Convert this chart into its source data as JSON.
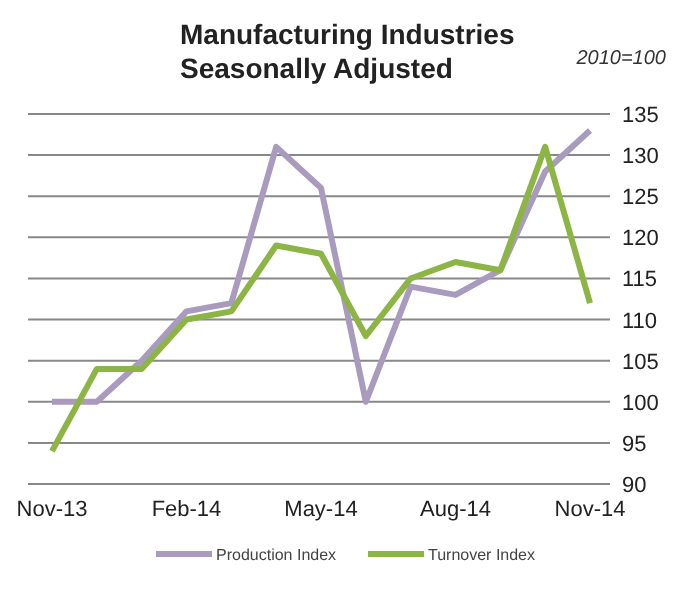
{
  "chart_data": {
    "type": "line",
    "title": "Manufacturing  Industries\nSeasonally Adjusted",
    "annotations": [
      "2010=100"
    ],
    "categories": [
      "Nov-13",
      null,
      null,
      "Feb-14",
      null,
      null,
      "May-14",
      null,
      null,
      "Aug-14",
      null,
      null,
      "Nov-14"
    ],
    "series": [
      {
        "name": "Production Index",
        "color": "#a99bbd",
        "values": [
          100,
          100,
          105,
          111,
          112,
          131,
          126,
          100,
          114,
          113,
          116,
          128,
          133
        ]
      },
      {
        "name": "Turnover Index",
        "color": "#8db545",
        "values": [
          94,
          104,
          104,
          110,
          111,
          119,
          118,
          108,
          115,
          117,
          116,
          131,
          112
        ]
      }
    ],
    "ylim": [
      90,
      135
    ],
    "yticks": [
      90,
      95,
      100,
      105,
      110,
      115,
      120,
      125,
      130,
      135
    ],
    "grid": "y",
    "legend": "bottom",
    "marker": "none",
    "line_style": "solid"
  }
}
